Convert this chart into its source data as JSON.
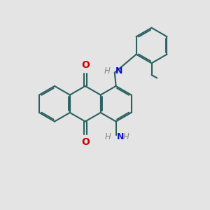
{
  "bg_color": "#e4e4e4",
  "bond_color": "#2a6060",
  "bond_width": 1.5,
  "o_color": "#cc0000",
  "n_color": "#1111cc",
  "text_color": "#333333",
  "figsize": [
    3.0,
    3.0
  ],
  "dpi": 100,
  "ring_r": 0.72,
  "xlim": [
    0.0,
    8.5
  ],
  "ylim": [
    0.5,
    9.0
  ]
}
